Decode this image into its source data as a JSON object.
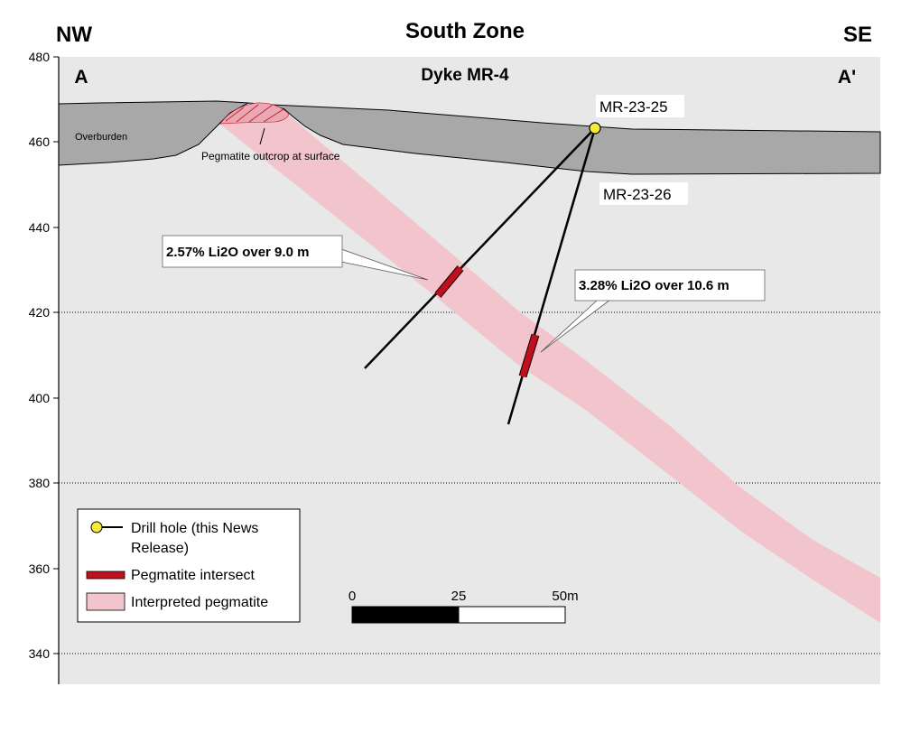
{
  "title": "South Zone",
  "subtitle": "Dyke MR-4",
  "orientation": {
    "left": "NW",
    "right": "SE"
  },
  "section_ends": {
    "left": "A",
    "right": "A'"
  },
  "y_axis": {
    "ticks": [
      "480",
      "460",
      "440",
      "420",
      "400",
      "380",
      "360",
      "340"
    ]
  },
  "labels": {
    "overburden": "Overburden",
    "outcrop": "Pegmatite outcrop at surface",
    "hole_25": "MR-23-25",
    "hole_26": "MR-23-26"
  },
  "callouts": {
    "intercept_1": "2.57% Li2O over 9.0 m",
    "intercept_2": "3.28% Li2O over 10.6 m"
  },
  "legend": {
    "drill_hole_line1": "Drill hole (this News",
    "drill_hole_line2": "Release)",
    "intersect": "Pegmatite intersect",
    "interpreted": "Interpreted pegmatite"
  },
  "scale_bar": {
    "labels": [
      "0",
      "25",
      "50m"
    ]
  },
  "colors": {
    "background": "#e8e8e8",
    "overburden": "#a8a8a8",
    "pegmatite": "#f2c4cc",
    "intersect": "#c0101e",
    "collar": "#f5e93a"
  }
}
